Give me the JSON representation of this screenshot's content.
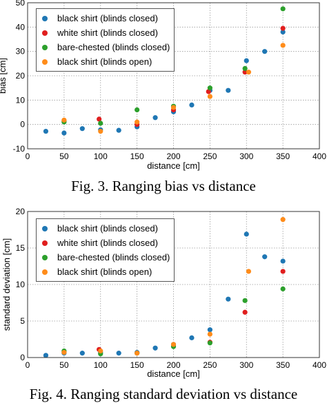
{
  "chart_data": [
    {
      "type": "scatter",
      "title": "",
      "xlabel": "distance [cm]",
      "ylabel": "bias [cm]",
      "xlim": [
        0,
        400
      ],
      "ylim": [
        -10,
        50
      ],
      "xticks": [
        "0",
        "50",
        "100",
        "150",
        "200",
        "250",
        "300",
        "350",
        "400"
      ],
      "yticks": [
        "-10",
        "0",
        "10",
        "20",
        "30",
        "40",
        "50"
      ],
      "grid": true,
      "legend_position": "top-left",
      "series": [
        {
          "name": "black shirt (blinds closed)",
          "color": "#1f77b4",
          "x": [
            25,
            50,
            75,
            100,
            125,
            150,
            175,
            200,
            225,
            250,
            275,
            300,
            325,
            350
          ],
          "y": [
            -2.8,
            -3.5,
            -1.7,
            -2.2,
            -2.4,
            -1.0,
            2.8,
            5.2,
            8.0,
            14.0,
            14.0,
            26.2,
            30.0,
            38.0
          ]
        },
        {
          "name": "white shirt (blinds closed)",
          "color": "#e01e1e",
          "x": [
            50,
            98,
            150,
            200,
            248,
            298,
            350
          ],
          "y": [
            1.5,
            2.2,
            0.0,
            6.0,
            13.5,
            21.5,
            39.5
          ]
        },
        {
          "name": "bare-chested (blinds closed)",
          "color": "#2ca02c",
          "x": [
            50,
            100,
            150,
            200,
            250,
            298,
            350
          ],
          "y": [
            1.0,
            0.5,
            6.0,
            7.5,
            15.0,
            23.0,
            47.5
          ]
        },
        {
          "name": "black shirt (blinds open)",
          "color": "#ff8c1a",
          "x": [
            50,
            100,
            150,
            200,
            250,
            303,
            350
          ],
          "y": [
            1.8,
            -2.8,
            1.0,
            7.0,
            11.5,
            21.5,
            32.5
          ]
        }
      ]
    },
    {
      "type": "scatter",
      "title": "",
      "xlabel": "distance [cm]",
      "ylabel": "standard deviation [cm]",
      "xlim": [
        0,
        400
      ],
      "ylim": [
        0,
        20
      ],
      "xticks": [
        "0",
        "50",
        "100",
        "150",
        "200",
        "250",
        "300",
        "350",
        "400"
      ],
      "yticks": [
        "0",
        "5",
        "10",
        "15",
        "20"
      ],
      "grid": true,
      "legend_position": "top-left",
      "series": [
        {
          "name": "black shirt (blinds closed)",
          "color": "#1f77b4",
          "x": [
            25,
            50,
            75,
            100,
            125,
            150,
            175,
            200,
            225,
            250,
            275,
            300,
            325,
            350
          ],
          "y": [
            0.3,
            0.6,
            0.6,
            0.7,
            0.6,
            0.7,
            1.3,
            1.8,
            2.7,
            3.8,
            8.0,
            16.9,
            13.8,
            13.2
          ]
        },
        {
          "name": "white shirt (blinds closed)",
          "color": "#e01e1e",
          "x": [
            50,
            98,
            150,
            200,
            250,
            298,
            350
          ],
          "y": [
            0.8,
            1.1,
            0.6,
            1.6,
            2.1,
            6.2,
            11.8
          ]
        },
        {
          "name": "bare-chested (blinds closed)",
          "color": "#2ca02c",
          "x": [
            50,
            100,
            150,
            200,
            250,
            298,
            350
          ],
          "y": [
            0.9,
            0.5,
            0.6,
            1.5,
            2.0,
            7.8,
            9.4
          ]
        },
        {
          "name": "black shirt (blinds open)",
          "color": "#ff8c1a",
          "x": [
            50,
            100,
            150,
            200,
            250,
            303,
            350
          ],
          "y": [
            0.7,
            0.9,
            0.6,
            1.8,
            3.2,
            11.8,
            18.9
          ]
        }
      ]
    }
  ],
  "captions": {
    "fig3": "Fig. 3. Ranging bias vs distance",
    "fig4": "Fig. 4. Ranging standard deviation vs distance"
  }
}
